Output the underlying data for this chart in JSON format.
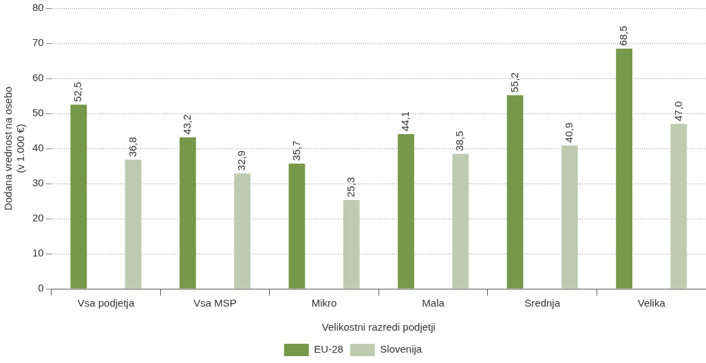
{
  "chart_data": {
    "type": "bar",
    "xlabel": "Velikostni razredi podjetji",
    "ylabel": "Dodana vrednost na osebo\n(v 1.000 €)",
    "categories": [
      "Vsa podjetja",
      "Vsa MSP",
      "Mikro",
      "Mala",
      "Srednja",
      "Velika"
    ],
    "series": [
      {
        "name": "EU-28",
        "color": "#76984a",
        "values": [
          52.5,
          43.2,
          35.7,
          44.1,
          55.2,
          68.5
        ],
        "value_labels": [
          "52,5",
          "43,2",
          "35,7",
          "44,1",
          "55,2",
          "68,5"
        ]
      },
      {
        "name": "Slovenija",
        "color": "#bfcbb0",
        "values": [
          36.8,
          32.9,
          25.3,
          38.5,
          40.9,
          47.0
        ],
        "value_labels": [
          "36,8",
          "32,9",
          "25,3",
          "38,5",
          "40,9",
          "47,0"
        ]
      }
    ],
    "ylim": [
      0,
      80
    ],
    "yticks": [
      0,
      10,
      20,
      30,
      40,
      50,
      60,
      70,
      80
    ],
    "grid": "y",
    "legend": "bottom"
  }
}
